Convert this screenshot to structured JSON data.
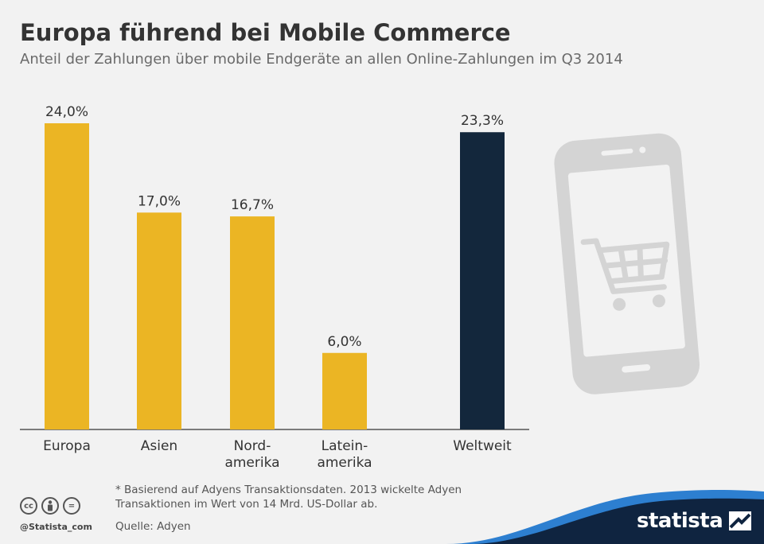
{
  "header": {
    "title": "Europa führend bei Mobile Commerce",
    "subtitle": "Anteil der Zahlungen über mobile Endgeräte an allen Online-Zahlungen im Q3 2014"
  },
  "chart_data": {
    "type": "bar",
    "title": "Europa führend bei Mobile Commerce",
    "subtitle": "Anteil der Zahlungen über mobile Endgeräte an allen Online-Zahlungen im Q3 2014",
    "categories": [
      [
        "Europa"
      ],
      [
        "Asien"
      ],
      [
        "Nord-",
        "amerika"
      ],
      [
        "Latein-",
        "amerika"
      ],
      [
        "Weltweit"
      ]
    ],
    "values": [
      24.0,
      17.0,
      16.7,
      6.0,
      23.3
    ],
    "value_labels": [
      "24,0%",
      "17,0%",
      "16,7%",
      "6,0%",
      "23,3%"
    ],
    "bar_colors": [
      "#ebb524",
      "#ebb524",
      "#ebb524",
      "#ebb524",
      "#13273c"
    ],
    "ylim": [
      0,
      24.0
    ],
    "grid": false,
    "legend": "none"
  },
  "footer": {
    "footnote": "* Basierend auf Adyens Transaktionsdaten. 2013 wickelte Adyen Transaktionen im Wert von 14 Mrd. US-Dollar ab.",
    "source": "Quelle: Adyen",
    "handle": "@Statista_com",
    "brand": "statista",
    "cc_icons": [
      "cc",
      "by",
      "="
    ]
  },
  "colors": {
    "accent": "#ebb524",
    "highlight": "#13273c",
    "brand_blue": "#0f2440",
    "illustration": "#d4d4d4"
  },
  "icons": {
    "illustration": "smartphone-shopping-cart-icon",
    "brand_logo": "statista-logo-icon"
  }
}
